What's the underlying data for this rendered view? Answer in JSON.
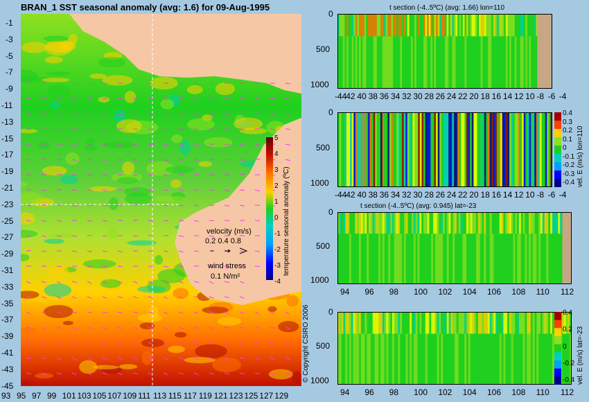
{
  "main_title": "BRAN_1  SST seasonal anomaly  (avg: 1.6) for 09-Aug-1995",
  "colors": {
    "background": "#a6c9e2",
    "land": "#f6c7a4",
    "land_profile": "#c7a783",
    "vector": "#ff33ff",
    "colormap": [
      "#00008b",
      "#0000ff",
      "#00a0ff",
      "#00e0c0",
      "#1fd01f",
      "#8fe020",
      "#ffff00",
      "#ffb000",
      "#ff4000",
      "#a00000",
      "#600000"
    ]
  },
  "map": {
    "lat_ticks": [
      "-1",
      "-3",
      "-5",
      "-7",
      "-9",
      "-11",
      "-13",
      "-15",
      "-17",
      "-19",
      "-21",
      "-23",
      "-25",
      "-27",
      "-29",
      "-31",
      "-33",
      "-35",
      "-37",
      "-39",
      "-41",
      "-43",
      "-45"
    ],
    "lon_ticks": [
      "93",
      "95",
      "97",
      "99",
      "101",
      "103",
      "105",
      "107",
      "109",
      "111",
      "113",
      "115",
      "117",
      "119",
      "121",
      "123",
      "125",
      "127",
      "129"
    ],
    "colorbar_ticks": [
      "5",
      "4",
      "3",
      "2",
      "1",
      "0",
      "-1",
      "-2",
      "-3",
      "-4"
    ],
    "colorbar_label": "temperature seasonal anomaly (ºC)",
    "velocity_label": "velocity (m/s)",
    "velocity_scale": "0.2 0.4 0.8",
    "wind_label": "wind stress",
    "wind_scale": "0.1 N/m²",
    "copyright": "© Copyright CSIRO 2006"
  },
  "chart_data": [
    {
      "type": "heatmap",
      "title": "t section (-4..5ºC) (avg: 1.66) lon=110",
      "x_ticks": [
        "-44",
        "42",
        "40",
        "38",
        "36",
        "34",
        "32",
        "30",
        "28",
        "26",
        "24",
        "22",
        "20",
        "18",
        "16",
        "14",
        "12",
        "10",
        "-8",
        "-6",
        "-4"
      ],
      "y_ticks": [
        "0",
        "500",
        "1000"
      ],
      "ylim": [
        1050,
        0
      ]
    },
    {
      "type": "heatmap",
      "title": "",
      "x_ticks": [
        "-44",
        "42",
        "40",
        "38",
        "36",
        "34",
        "32",
        "30",
        "28",
        "26",
        "24",
        "22",
        "20",
        "18",
        "16",
        "14",
        "12",
        "10",
        "-8",
        "-6",
        "-4"
      ],
      "y_ticks": [
        "0",
        "500",
        "1000"
      ],
      "colorbar_ticks": [
        "0.4",
        "0.3",
        "0.2",
        "0.1",
        "0",
        "-0.1",
        "-0.2",
        "-0.3",
        "-0.4"
      ],
      "colorbar_label": "vel. E (m/s) lon=110"
    },
    {
      "type": "heatmap",
      "title": "t section (-4..5ºC) (avg: 0.945) lat=-23",
      "x_ticks": [
        "94",
        "96",
        "98",
        "100",
        "102",
        "104",
        "106",
        "108",
        "110",
        "112"
      ],
      "y_ticks": [
        "0",
        "500",
        "1000"
      ]
    },
    {
      "type": "heatmap",
      "title": "",
      "x_ticks": [
        "94",
        "96",
        "98",
        "100",
        "102",
        "104",
        "106",
        "108",
        "110",
        "112"
      ],
      "y_ticks": [
        "0",
        "500",
        "1000"
      ],
      "colorbar_ticks": [
        "0.4",
        "0.2",
        "0",
        "-0.2",
        "-0.4"
      ],
      "colorbar_label": "vel. E (m/s) lat=-23"
    }
  ]
}
